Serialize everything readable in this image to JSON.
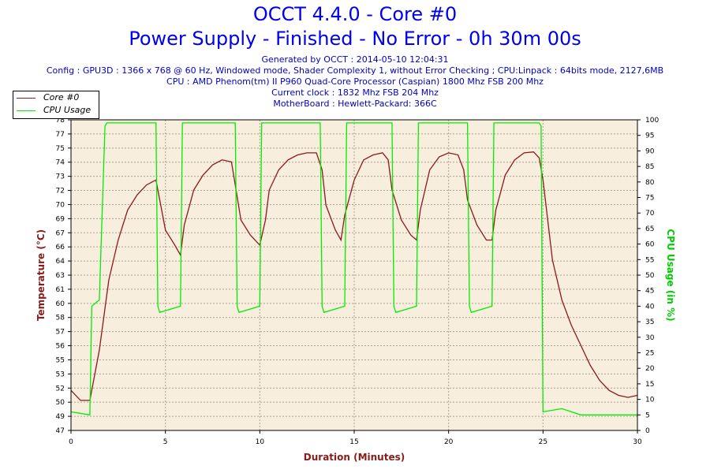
{
  "header": {
    "title_line1": "OCCT 4.4.0 - Core #0",
    "title_line2": "Power Supply - Finished - No Error - 0h 30m 00s",
    "generated": "Generated by OCCT : 2014-05-10 12:04:31",
    "config": "Config : GPU3D : 1366 x 768 @ 60 Hz, Windowed mode, Shader Complexity 1, without Error Checking ; CPU:Linpack : 64bits mode, 2127,6MB",
    "cpu": "CPU : AMD Phenom(tm) II P960 Quad-Core Processor (Caspian) 1800 Mhz FSB 200 Mhz",
    "clock": "Current clock : 1832 Mhz FSB 204 Mhz",
    "motherboard": "MotherBoard : Hewlett-Packard: 366C"
  },
  "colors": {
    "title": "#0000ee",
    "info": "#0000cc",
    "temperature": "#8b1a1a",
    "cpu_usage": "#00ee00",
    "plot_bg": "#f7eedd",
    "grid": "#b0a090",
    "xlabel": "#8b1a1a",
    "ylabel_left": "#8b1a1a",
    "ylabel_right": "#00cc00"
  },
  "chart_data": {
    "type": "line",
    "xlabel": "Duration (Minutes)",
    "ylabel": "Temperature (°C)",
    "ylabel_right": "CPU Usage (in %)",
    "xlim": [
      0,
      30
    ],
    "ylim": [
      47,
      78
    ],
    "ylim_right": [
      0,
      100
    ],
    "x_ticks": [
      "0",
      "5",
      "10",
      "15",
      "20",
      "25",
      "30"
    ],
    "y_ticks_left": [
      "47",
      "49",
      "50",
      "52",
      "53",
      "55",
      "56",
      "57",
      "58",
      "60",
      "61",
      "63",
      "64",
      "66",
      "67",
      "69",
      "70",
      "72",
      "73",
      "74",
      "75",
      "77",
      "78"
    ],
    "y_ticks_right": [
      "0",
      "5",
      "10",
      "15",
      "20",
      "25",
      "30",
      "35",
      "40",
      "45",
      "50",
      "55",
      "60",
      "65",
      "70",
      "75",
      "80",
      "85",
      "90",
      "95",
      "100"
    ],
    "grid": true,
    "legend": "top-left",
    "series": [
      {
        "name": "Core #0",
        "axis": "left",
        "x": [
          0,
          0.5,
          1.0,
          1.2,
          1.5,
          2.0,
          2.5,
          3.0,
          3.5,
          4.0,
          4.5,
          4.7,
          5.0,
          5.5,
          5.8,
          6.0,
          6.5,
          7.0,
          7.5,
          8.0,
          8.5,
          8.7,
          9.0,
          9.5,
          10.0,
          10.3,
          10.5,
          11.0,
          11.5,
          12.0,
          12.5,
          13.0,
          13.3,
          13.5,
          14.0,
          14.3,
          14.5,
          15.0,
          15.5,
          16.0,
          16.5,
          16.8,
          17.0,
          17.5,
          18.0,
          18.3,
          18.5,
          19.0,
          19.5,
          20.0,
          20.5,
          20.8,
          21.0,
          21.5,
          22.0,
          22.3,
          22.5,
          23.0,
          23.5,
          24.0,
          24.5,
          24.8,
          25.0,
          25.5,
          26.0,
          26.5,
          27.0,
          27.5,
          28.0,
          28.5,
          29.0,
          29.5,
          30.0
        ],
        "values": [
          51,
          50,
          50,
          52,
          55,
          62,
          66,
          69,
          70.5,
          71.5,
          72,
          70,
          67,
          65.5,
          64.5,
          67.5,
          71,
          72.5,
          73.5,
          74,
          73.8,
          71.5,
          68,
          66.5,
          65.5,
          68,
          71,
          73,
          74,
          74.5,
          74.7,
          74.7,
          73,
          69.5,
          67,
          66,
          68.5,
          72,
          74,
          74.5,
          74.7,
          74,
          71,
          68,
          66.5,
          66,
          69,
          73,
          74.3,
          74.7,
          74.5,
          73,
          70,
          67.5,
          66,
          66,
          69,
          72.5,
          74,
          74.7,
          74.8,
          74.2,
          72,
          64,
          60,
          57.5,
          55.5,
          53.5,
          52,
          51,
          50.5,
          50.3,
          50.5
        ]
      },
      {
        "name": "CPU Usage",
        "axis": "right",
        "x": [
          0,
          1.0,
          1.1,
          1.5,
          1.8,
          1.9,
          4.5,
          4.6,
          4.7,
          5.8,
          5.9,
          6.0,
          8.7,
          8.8,
          8.9,
          10.0,
          10.1,
          10.2,
          13.2,
          13.3,
          13.4,
          14.5,
          14.6,
          14.7,
          17.0,
          17.1,
          17.2,
          18.3,
          18.4,
          18.5,
          21.0,
          21.1,
          21.2,
          22.3,
          22.4,
          22.5,
          24.8,
          24.9,
          25.0,
          26.0,
          27.0,
          28.0,
          29.0,
          30.0
        ],
        "values": [
          6,
          5,
          40,
          42,
          98,
          99,
          99,
          40,
          38,
          40,
          99,
          99,
          99,
          40,
          38,
          40,
          99,
          99,
          99,
          40,
          38,
          40,
          99,
          99,
          99,
          40,
          38,
          40,
          99,
          99,
          99,
          40,
          38,
          40,
          99,
          99,
          99,
          98,
          6,
          7,
          5,
          5,
          5,
          5
        ]
      }
    ]
  }
}
